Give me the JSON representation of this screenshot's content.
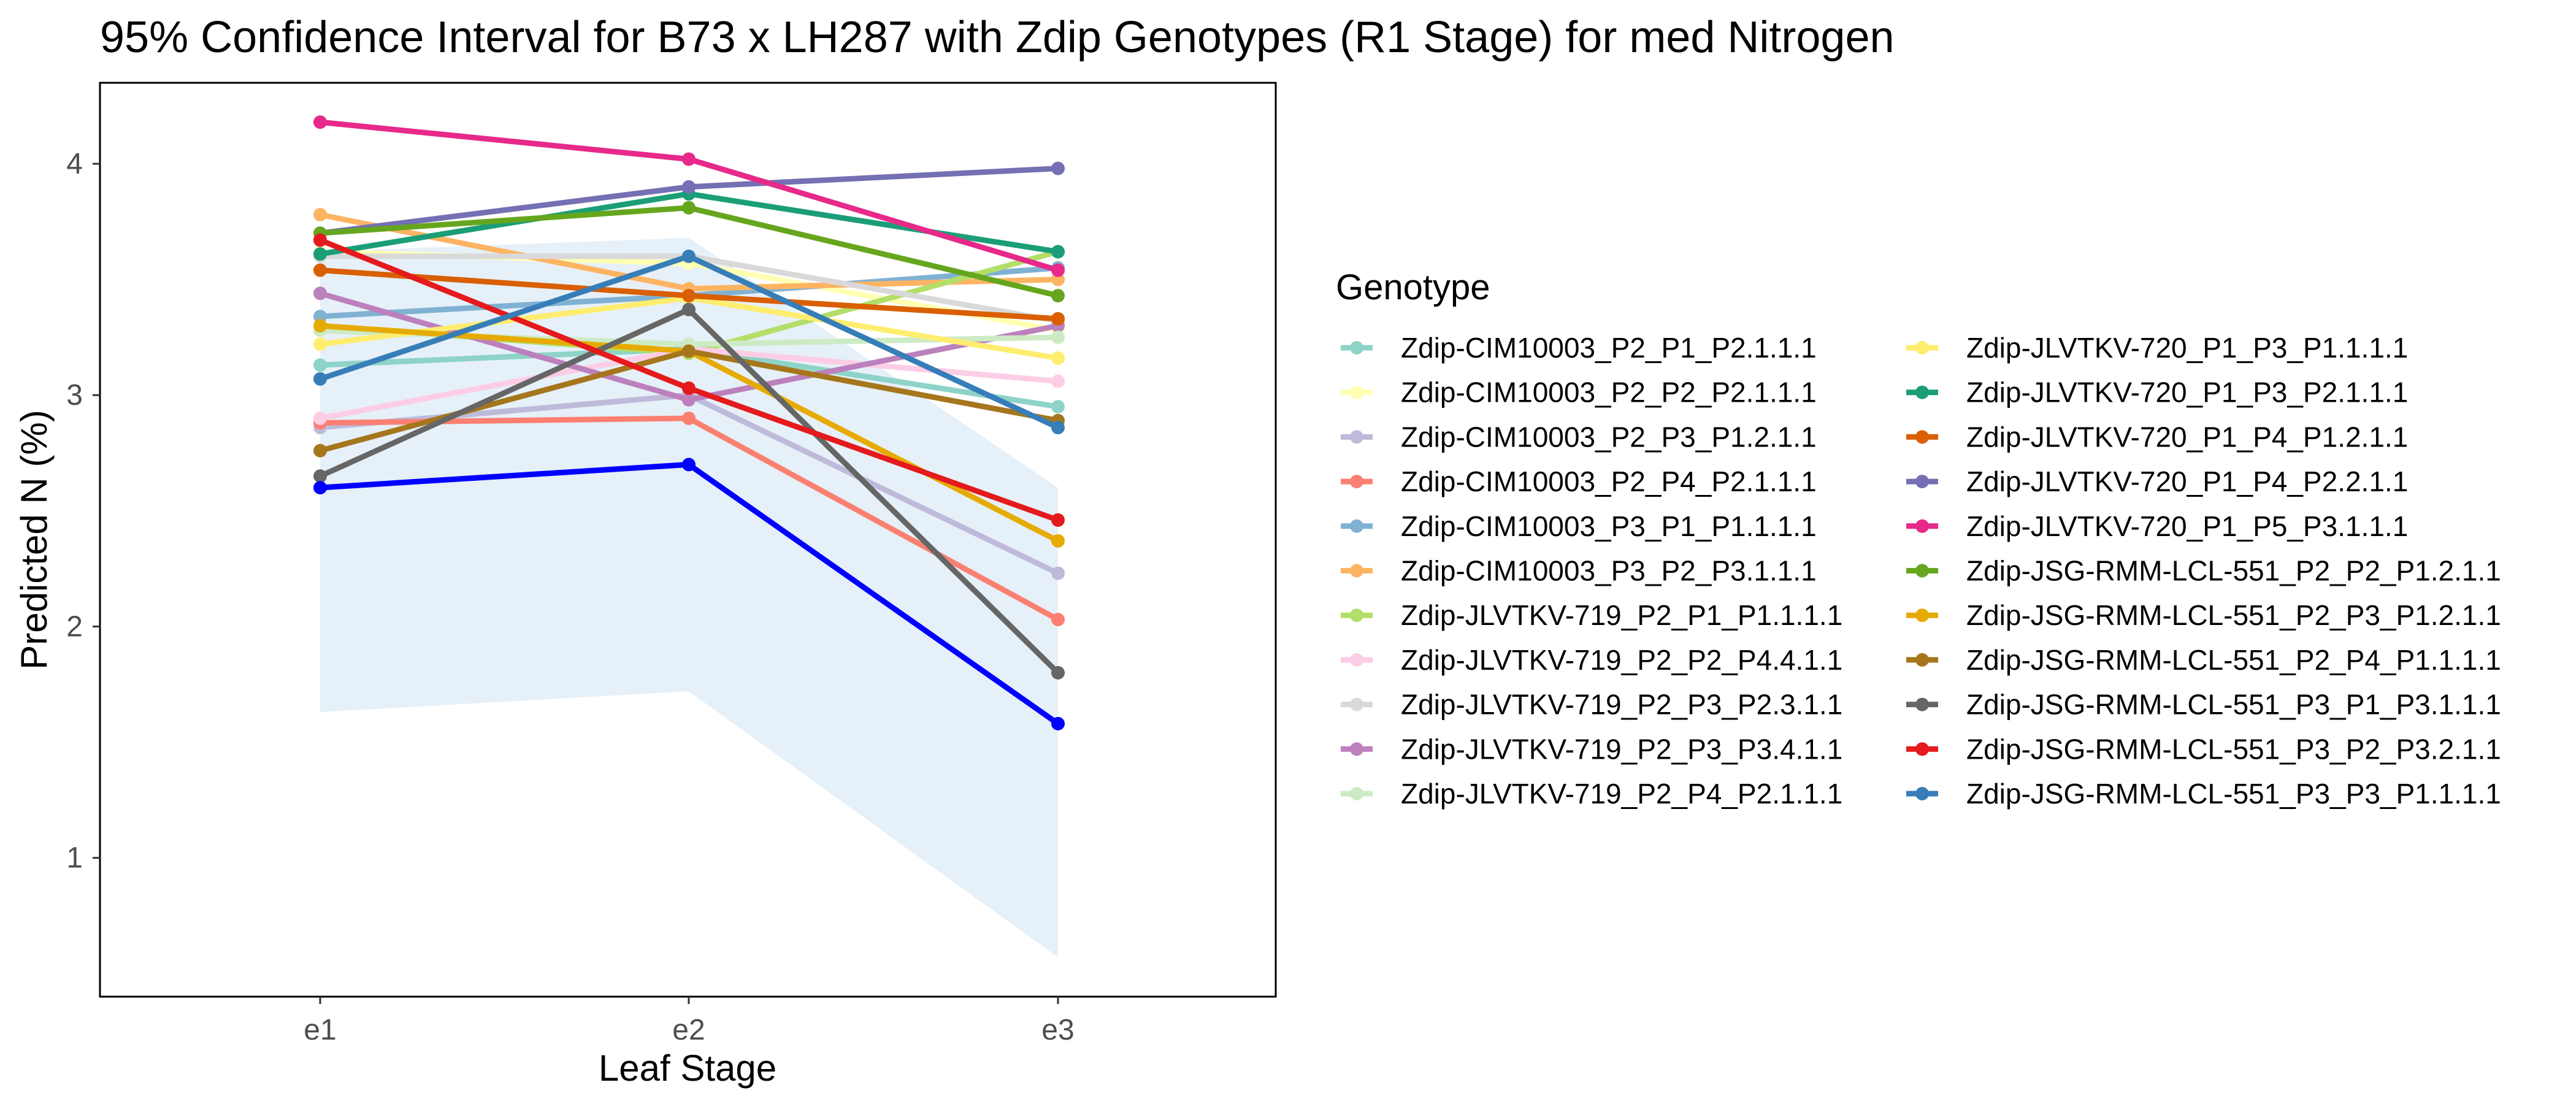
{
  "chart_data": {
    "type": "line",
    "title": "95% Confidence Interval for B73 x LH287 with Zdip Genotypes (R1 Stage) for med Nitrogen",
    "xlabel": "Leaf Stage",
    "ylabel": "Predicted N (%)",
    "categories": [
      "e1",
      "e2",
      "e3"
    ],
    "yticks": [
      "1",
      "2",
      "3",
      "4"
    ],
    "ylim": [
      0.4,
      4.35
    ],
    "grid": false,
    "legend": {
      "title": "Genotype",
      "placement": "right"
    },
    "ci_band": {
      "lower": [
        1.63,
        1.72,
        0.57
      ],
      "upper": [
        3.62,
        3.68,
        2.6
      ],
      "color": "#e6f0f8"
    },
    "series": [
      {
        "name": "Zdip-CIM10003_P2_P1_P2.1.1.1",
        "color": "#8dd3c7",
        "values": [
          3.13,
          3.2,
          2.95
        ]
      },
      {
        "name": "Zdip-CIM10003_P2_P2_P2.1.1.1",
        "color": "#ffffb3",
        "values": [
          3.62,
          3.57,
          3.28
        ]
      },
      {
        "name": "Zdip-CIM10003_P2_P3_P1.2.1.1",
        "color": "#bebada",
        "values": [
          2.86,
          3.0,
          2.23
        ]
      },
      {
        "name": "Zdip-CIM10003_P2_P4_P2.1.1.1",
        "color": "#fb8072",
        "values": [
          2.88,
          2.9,
          2.03
        ]
      },
      {
        "name": "Zdip-CIM10003_P3_P1_P1.1.1.1",
        "color": "#80b1d3",
        "values": [
          3.34,
          3.43,
          3.55
        ]
      },
      {
        "name": "Zdip-CIM10003_P3_P2_P3.1.1.1",
        "color": "#fdb462",
        "values": [
          3.78,
          3.46,
          3.5
        ]
      },
      {
        "name": "Zdip-JLVTKV-719_P2_P1_P1.1.1.1",
        "color": "#b3de69",
        "values": [
          3.3,
          3.18,
          3.62
        ]
      },
      {
        "name": "Zdip-JLVTKV-719_P2_P2_P4.4.1.1",
        "color": "#fccde5",
        "values": [
          2.9,
          3.2,
          3.06
        ]
      },
      {
        "name": "Zdip-JLVTKV-719_P2_P3_P2.3.1.1",
        "color": "#d9d9d9",
        "values": [
          3.6,
          3.6,
          3.32
        ]
      },
      {
        "name": "Zdip-JLVTKV-719_P2_P3_P3.4.1.1",
        "color": "#bc80bd",
        "values": [
          3.44,
          2.98,
          3.3
        ]
      },
      {
        "name": "Zdip-JLVTKV-719_P2_P4_P2.1.1.1",
        "color": "#ccebc5",
        "values": [
          3.28,
          3.22,
          3.25
        ]
      },
      {
        "name": "Zdip-JLVTKV-720_P1_P3_P1.1.1.1",
        "color": "#ffed6f",
        "values": [
          3.22,
          3.42,
          3.16
        ]
      },
      {
        "name": "Zdip-JLVTKV-720_P1_P3_P2.1.1.1",
        "color": "#1b9e77",
        "values": [
          3.61,
          3.87,
          3.62
        ]
      },
      {
        "name": "Zdip-JLVTKV-720_P1_P4_P1.2.1.1",
        "color": "#d95f02",
        "values": [
          3.54,
          3.43,
          3.33
        ]
      },
      {
        "name": "Zdip-JLVTKV-720_P1_P4_P2.2.1.1",
        "color": "#7570b3",
        "values": [
          3.7,
          3.9,
          3.98
        ]
      },
      {
        "name": "Zdip-JLVTKV-720_P1_P5_P3.1.1.1",
        "color": "#e7298a",
        "values": [
          4.18,
          4.02,
          3.54
        ]
      },
      {
        "name": "Zdip-JSG-RMM-LCL-551_P2_P2_P1.2.1.1",
        "color": "#66a61e",
        "values": [
          3.7,
          3.81,
          3.43
        ]
      },
      {
        "name": "Zdip-JSG-RMM-LCL-551_P2_P3_P1.2.1.1",
        "color": "#e6ab02",
        "values": [
          3.3,
          3.19,
          2.37
        ]
      },
      {
        "name": "Zdip-JSG-RMM-LCL-551_P2_P4_P1.1.1.1",
        "color": "#a6761d",
        "values": [
          2.76,
          3.19,
          2.89
        ]
      },
      {
        "name": "Zdip-JSG-RMM-LCL-551_P3_P1_P3.1.1.1",
        "color": "#666666",
        "values": [
          2.65,
          3.37,
          1.8
        ]
      },
      {
        "name": "Zdip-JSG-RMM-LCL-551_P3_P2_P3.2.1.1",
        "color": "#e41a1c",
        "values": [
          3.67,
          3.03,
          2.46
        ]
      },
      {
        "name": "Zdip-JSG-RMM-LCL-551_P3_P3_P1.1.1.1",
        "color": "#377eb8",
        "values": [
          3.07,
          3.6,
          2.86
        ]
      },
      {
        "name": "",
        "color": "#0000ff",
        "values": [
          2.6,
          2.7,
          1.58
        ]
      }
    ]
  }
}
